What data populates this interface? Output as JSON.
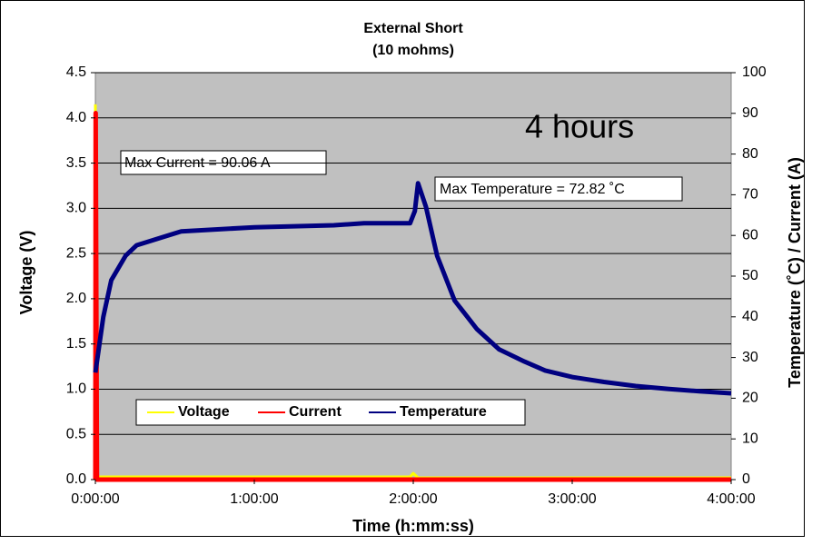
{
  "chart_data": {
    "type": "line",
    "title": "External Short",
    "subtitle": "(10 mohms)",
    "x_label": "Time (h:mm:ss)",
    "y_label": "Voltage (V)",
    "y2_label": "Temperature (˚C) / Current (A)",
    "annotations": [
      "Max Current = 90.06 A",
      "Max Temperature = 72.82 ˚C",
      "4 hours"
    ],
    "xlim": [
      0,
      4
    ],
    "xticks": [
      {
        "value": 0,
        "label": "0:00:00"
      },
      {
        "value": 1,
        "label": "1:00:00"
      },
      {
        "value": 2,
        "label": "2:00:00"
      },
      {
        "value": 3,
        "label": "3:00:00"
      },
      {
        "value": 4,
        "label": "4:00:00"
      }
    ],
    "ylim": [
      0,
      4.5
    ],
    "yticks": [
      {
        "value": 0,
        "label": "0.0"
      },
      {
        "value": 0.5,
        "label": "0.5"
      },
      {
        "value": 1,
        "label": "1.0"
      },
      {
        "value": 1.5,
        "label": "1.5"
      },
      {
        "value": 2,
        "label": "2.0"
      },
      {
        "value": 2.5,
        "label": "2.5"
      },
      {
        "value": 3,
        "label": "3.0"
      },
      {
        "value": 3.5,
        "label": "3.5"
      },
      {
        "value": 4,
        "label": "4.0"
      },
      {
        "value": 4.5,
        "label": "4.5"
      }
    ],
    "y2lim": [
      0,
      100
    ],
    "y2ticks": [
      0,
      10,
      20,
      30,
      40,
      50,
      60,
      70,
      80,
      90,
      100
    ],
    "grid": true,
    "series": [
      {
        "name": "Voltage",
        "color": "#ffff00",
        "axis": "y",
        "x": [
          0,
          0.005,
          0.01,
          1.98,
          2.0,
          2.03,
          4
        ],
        "values": [
          4.15,
          0.65,
          0.03,
          0.03,
          0.07,
          0.02,
          0.02
        ]
      },
      {
        "name": "Current",
        "color": "#ff0000",
        "axis": "y2",
        "x": [
          0,
          0.002,
          0.01,
          4
        ],
        "values": [
          0,
          90.06,
          0,
          0
        ]
      },
      {
        "name": "Temperature",
        "color": "#000080",
        "axis": "y2",
        "x": [
          0,
          0.05,
          0.1,
          0.19,
          0.26,
          0.54,
          1.0,
          1.5,
          1.69,
          1.98,
          2.01,
          2.03,
          2.08,
          2.15,
          2.26,
          2.4,
          2.54,
          2.7,
          2.83,
          3.0,
          3.2,
          3.4,
          3.6,
          3.8,
          4.0
        ],
        "values": [
          26.3,
          40,
          49,
          55,
          57.6,
          61,
          62,
          62.5,
          63,
          63,
          66,
          72.82,
          67,
          55,
          44,
          37,
          32,
          29,
          26.8,
          25.2,
          24,
          23,
          22.3,
          21.7,
          21.2
        ]
      }
    ]
  }
}
